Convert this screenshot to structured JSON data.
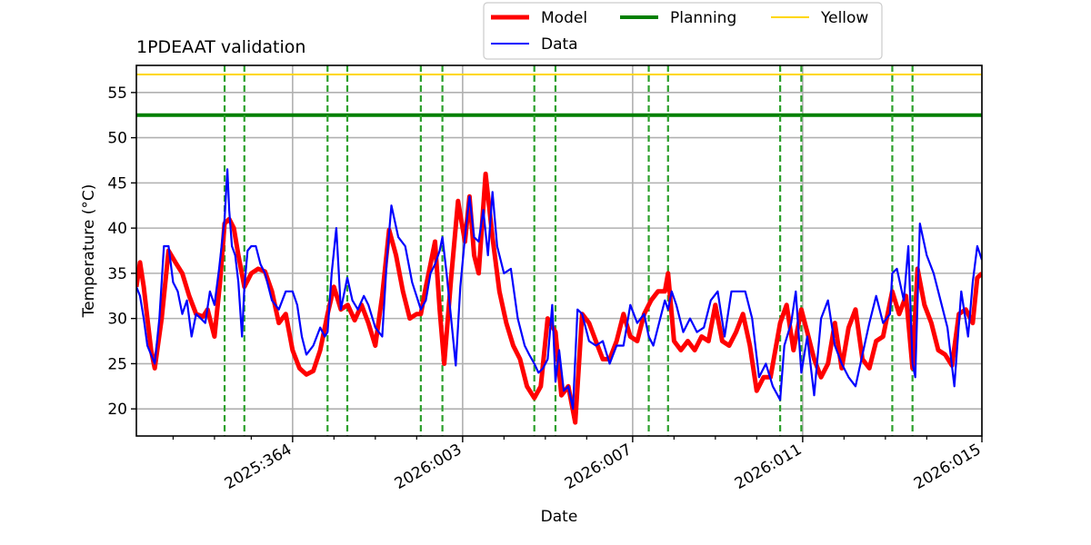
{
  "chart_data": {
    "type": "line",
    "title": "1PDEAAT validation",
    "xlabel": "Date",
    "ylabel": "Temperature ($^\\circ$C)",
    "ylabel_display": "Temperature (°C)",
    "xlim": [
      361.6,
      380.0
    ],
    "ylim": [
      17,
      58
    ],
    "yticks": [
      20,
      25,
      30,
      35,
      40,
      45,
      50,
      55
    ],
    "xticks": [
      {
        "value": 365,
        "label": "2025:364"
      },
      {
        "value": 368.7,
        "label": "2026:003"
      },
      {
        "value": 372.4,
        "label": "2026:007"
      },
      {
        "value": 376.1,
        "label": "2026:011"
      },
      {
        "value": 380.0,
        "label": "2026:015"
      }
    ],
    "minor_xticks": [
      362.4,
      363.3,
      364.1,
      365.9,
      366.8,
      367.7,
      369.6,
      370.5,
      371.4,
      373.3,
      374.2,
      375.1,
      377.0,
      377.9,
      378.8
    ],
    "grid": true,
    "legend": {
      "placement": "top-center-outside",
      "entries": [
        {
          "name": "Model",
          "color": "#ff0000"
        },
        {
          "name": "Planning",
          "color": "#008000"
        },
        {
          "name": "Yellow",
          "color": "#ffd700"
        },
        {
          "name": "Data",
          "color": "#0000ff"
        }
      ]
    },
    "hlines": [
      {
        "name": "Planning",
        "value": 52.5,
        "color": "#008000"
      },
      {
        "name": "Yellow",
        "value": 57.0,
        "color": "#ffd700"
      }
    ],
    "vlines": {
      "color": "#2ca02c",
      "style": "dashed",
      "values": [
        363.52,
        363.95,
        365.76,
        366.19,
        367.79,
        368.26,
        370.26,
        370.72,
        372.75,
        373.17,
        375.61,
        376.07,
        378.05,
        378.49
      ]
    },
    "series": [
      {
        "name": "Model",
        "color": "#ff0000",
        "x": [
          361.6,
          361.68,
          361.76,
          361.84,
          361.92,
          362.0,
          362.15,
          362.3,
          362.45,
          362.6,
          362.75,
          362.9,
          363.05,
          363.15,
          363.3,
          363.42,
          363.52,
          363.62,
          363.72,
          363.82,
          363.95,
          364.1,
          364.25,
          364.4,
          364.55,
          364.7,
          364.85,
          365.0,
          365.15,
          365.3,
          365.45,
          365.6,
          365.76,
          365.9,
          366.05,
          366.2,
          366.35,
          366.5,
          366.65,
          366.8,
          366.95,
          367.1,
          367.25,
          367.4,
          367.55,
          367.7,
          367.79,
          367.9,
          368.0,
          368.1,
          368.2,
          368.3,
          368.45,
          368.6,
          368.75,
          368.85,
          368.95,
          369.05,
          369.2,
          369.35,
          369.5,
          369.65,
          369.8,
          369.95,
          370.1,
          370.26,
          370.4,
          370.55,
          370.72,
          370.85,
          371.0,
          371.15,
          371.3,
          371.45,
          371.6,
          371.75,
          371.9,
          372.05,
          372.2,
          372.35,
          372.5,
          372.65,
          372.8,
          372.95,
          373.1,
          373.17,
          373.3,
          373.45,
          373.6,
          373.75,
          373.9,
          374.05,
          374.2,
          374.35,
          374.5,
          374.65,
          374.8,
          374.95,
          375.1,
          375.25,
          375.4,
          375.61,
          375.75,
          375.9,
          376.07,
          376.2,
          376.35,
          376.5,
          376.65,
          376.8,
          376.95,
          377.1,
          377.25,
          377.4,
          377.55,
          377.7,
          377.85,
          378.05,
          378.2,
          378.35,
          378.49,
          378.6,
          378.75,
          378.9,
          379.05,
          379.2,
          379.35,
          379.5,
          379.65,
          379.8,
          379.9,
          380.0
        ],
        "values": [
          33.5,
          36.2,
          33.5,
          30.0,
          26.5,
          24.5,
          30.0,
          37.5,
          36.2,
          35.0,
          32.5,
          30.5,
          30.2,
          31.0,
          28.0,
          34.0,
          40.5,
          41.0,
          40.0,
          37.0,
          33.5,
          35.0,
          35.5,
          35.2,
          33.0,
          29.5,
          30.5,
          26.5,
          24.5,
          23.8,
          24.2,
          26.5,
          30.5,
          33.5,
          31.0,
          31.5,
          29.8,
          31.5,
          29.5,
          27.0,
          32.5,
          39.8,
          37.0,
          33.0,
          30.0,
          30.5,
          30.5,
          33.5,
          36.0,
          38.5,
          31.0,
          25.0,
          34.5,
          43.0,
          38.5,
          43.5,
          37.0,
          35.0,
          46.0,
          39.0,
          33.0,
          29.5,
          27.0,
          25.5,
          22.5,
          21.2,
          22.5,
          30.0,
          28.5,
          21.5,
          22.5,
          18.5,
          30.5,
          29.5,
          27.5,
          25.5,
          25.5,
          27.5,
          30.5,
          28.0,
          27.5,
          30.5,
          32.0,
          33.0,
          33.0,
          35.0,
          27.5,
          26.5,
          27.5,
          26.5,
          28.0,
          27.5,
          31.5,
          27.5,
          27.0,
          28.5,
          30.5,
          27.0,
          22.0,
          23.5,
          23.5,
          29.5,
          31.5,
          26.5,
          31.0,
          28.5,
          25.5,
          23.5,
          25.0,
          29.5,
          24.5,
          29.0,
          31.0,
          25.5,
          24.5,
          27.5,
          28.0,
          33.0,
          30.5,
          32.5,
          24.5,
          35.5,
          31.5,
          29.5,
          26.5,
          26.0,
          24.8,
          30.5,
          31.0,
          29.5,
          34.5,
          35.0
        ]
      },
      {
        "name": "Data",
        "color": "#0000ff",
        "x": [
          361.6,
          361.68,
          361.76,
          361.84,
          361.92,
          362.0,
          362.1,
          362.2,
          362.3,
          362.4,
          362.5,
          362.6,
          362.7,
          362.8,
          362.9,
          363.0,
          363.1,
          363.2,
          363.3,
          363.4,
          363.52,
          363.58,
          363.62,
          363.68,
          363.75,
          363.82,
          363.9,
          363.95,
          364.02,
          364.1,
          364.2,
          364.3,
          364.4,
          364.55,
          364.7,
          364.85,
          365.0,
          365.1,
          365.2,
          365.3,
          365.45,
          365.6,
          365.7,
          365.76,
          365.85,
          365.95,
          366.05,
          366.19,
          366.3,
          366.42,
          366.55,
          366.65,
          366.8,
          366.95,
          367.05,
          367.15,
          367.3,
          367.45,
          367.6,
          367.79,
          367.9,
          368.0,
          368.1,
          368.2,
          368.26,
          368.35,
          368.45,
          368.55,
          368.65,
          368.75,
          368.85,
          368.95,
          369.05,
          369.15,
          369.25,
          369.35,
          369.45,
          369.6,
          369.75,
          369.9,
          370.05,
          370.15,
          370.26,
          370.35,
          370.45,
          370.55,
          370.65,
          370.72,
          370.8,
          370.9,
          371.0,
          371.1,
          371.2,
          371.3,
          371.45,
          371.6,
          371.75,
          371.9,
          372.05,
          372.2,
          372.35,
          372.5,
          372.65,
          372.75,
          372.85,
          373.0,
          373.1,
          373.17,
          373.25,
          373.35,
          373.5,
          373.65,
          373.8,
          373.95,
          374.1,
          374.25,
          374.4,
          374.55,
          374.7,
          374.85,
          375.0,
          375.15,
          375.3,
          375.45,
          375.61,
          375.7,
          375.85,
          375.95,
          376.07,
          376.2,
          376.35,
          376.5,
          376.65,
          376.8,
          376.95,
          377.1,
          377.25,
          377.4,
          377.55,
          377.7,
          377.85,
          378.0,
          378.05,
          378.15,
          378.3,
          378.4,
          378.49,
          378.55,
          378.65,
          378.8,
          378.95,
          379.1,
          379.25,
          379.4,
          379.55,
          379.7,
          379.8,
          379.9,
          380.0
        ],
        "values": [
          33.5,
          32.5,
          30.0,
          27.0,
          26.0,
          25.0,
          30.0,
          38.0,
          38.0,
          34.0,
          33.0,
          30.5,
          32.0,
          28.0,
          30.5,
          30.0,
          29.5,
          33.0,
          31.5,
          35.5,
          41.0,
          46.5,
          42.0,
          38.0,
          37.0,
          34.0,
          28.0,
          33.5,
          37.5,
          38.0,
          38.0,
          36.0,
          35.0,
          32.0,
          31.0,
          33.0,
          33.0,
          31.5,
          28.0,
          26.0,
          27.0,
          29.0,
          28.0,
          28.5,
          35.0,
          40.0,
          31.0,
          34.5,
          32.0,
          31.0,
          32.5,
          31.5,
          29.0,
          28.0,
          36.5,
          42.5,
          39.0,
          38.0,
          34.0,
          31.0,
          32.0,
          35.0,
          36.0,
          37.5,
          39.0,
          35.0,
          30.0,
          24.8,
          33.5,
          39.0,
          43.5,
          39.0,
          38.5,
          42.0,
          37.0,
          44.0,
          38.0,
          35.0,
          35.5,
          30.0,
          27.0,
          26.0,
          25.0,
          24.0,
          24.5,
          25.5,
          31.5,
          23.0,
          26.5,
          22.0,
          22.5,
          20.0,
          31.0,
          30.5,
          27.5,
          27.0,
          27.5,
          25.0,
          27.0,
          27.0,
          31.5,
          29.5,
          30.5,
          28.0,
          27.0,
          30.0,
          32.0,
          31.0,
          33.0,
          31.5,
          28.5,
          30.0,
          28.5,
          29.0,
          32.0,
          33.0,
          28.0,
          33.0,
          33.0,
          33.0,
          30.0,
          23.5,
          25.0,
          22.5,
          21.0,
          27.0,
          29.5,
          33.0,
          24.0,
          28.0,
          21.5,
          30.0,
          32.0,
          27.0,
          25.0,
          23.5,
          22.5,
          26.0,
          29.5,
          32.5,
          29.5,
          30.5,
          35.0,
          35.5,
          32.0,
          38.0,
          25.0,
          23.5,
          40.5,
          37.0,
          35.0,
          32.0,
          29.0,
          22.5,
          33.0,
          28.0,
          34.0,
          38.0,
          36.5
        ]
      }
    ]
  }
}
